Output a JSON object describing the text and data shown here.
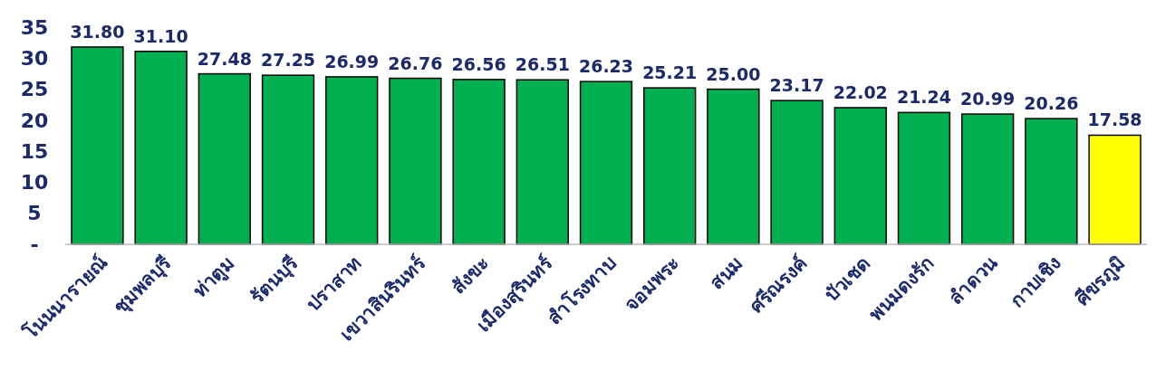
{
  "chart_data": {
    "type": "bar",
    "categories": [
      "โนนนารายณ์",
      "ชุมพลบุรี",
      "ท่าตูม",
      "รัตนบุรี",
      "ปราสาท",
      "เขวาสินรินทร์",
      "สังขะ",
      "เมืองสุรินทร์",
      "สำโรงทาบ",
      "จอมพระ",
      "สนม",
      "ศรีณรงค์",
      "บัวเชด",
      "พนมดงรัก",
      "ลำดวน",
      "กาบเชิง",
      "ศีขรภูมิ"
    ],
    "values": [
      31.8,
      31.1,
      27.48,
      27.25,
      26.99,
      26.76,
      26.56,
      26.51,
      26.23,
      25.21,
      25.0,
      23.17,
      22.02,
      21.24,
      20.99,
      20.26,
      17.58
    ],
    "value_labels": [
      "31.80",
      "31.10",
      "27.48",
      "27.25",
      "26.99",
      "26.76",
      "26.56",
      "26.51",
      "26.23",
      "25.21",
      "25.00",
      "23.17",
      "22.02",
      "21.24",
      "20.99",
      "20.26",
      "17.58"
    ],
    "colors": [
      "#00b050",
      "#00b050",
      "#00b050",
      "#00b050",
      "#00b050",
      "#00b050",
      "#00b050",
      "#00b050",
      "#00b050",
      "#00b050",
      "#00b050",
      "#00b050",
      "#00b050",
      "#00b050",
      "#00b050",
      "#00b050",
      "#ffff00"
    ],
    "ylim": [
      0,
      35
    ],
    "yticks": [
      {
        "value": 0,
        "label": "-"
      },
      5,
      10,
      15,
      20,
      25,
      30,
      35
    ],
    "grid": false
  }
}
